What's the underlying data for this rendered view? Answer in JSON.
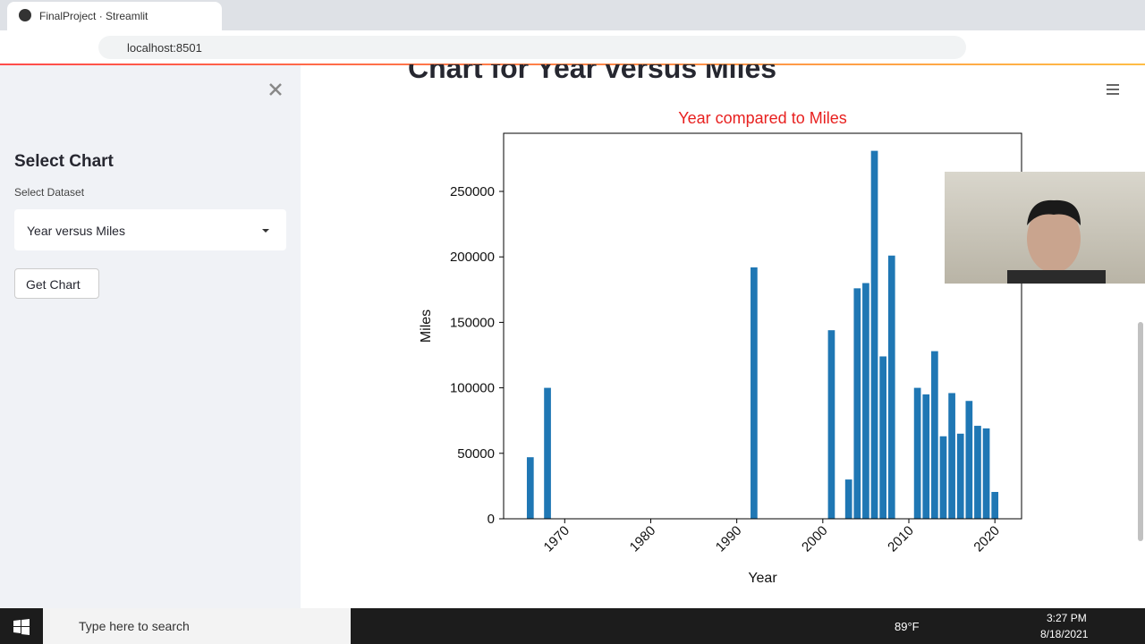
{
  "browser": {
    "tab_title": "FinalProject · Streamlit",
    "url": "localhost:8501"
  },
  "header": {
    "title": "Chart for Year versus Miles"
  },
  "sidebar": {
    "title": "Select Chart",
    "select_label": "Select Dataset",
    "select_value": "Year versus Miles",
    "button": "Get Chart"
  },
  "chart_data": {
    "type": "bar",
    "title": "Year compared to Miles",
    "title_color": "#e8201f",
    "x_label": "Year",
    "y_label": "Miles",
    "x": [
      1966,
      1968,
      1992,
      2001,
      2003,
      2004,
      2005,
      2006,
      2007,
      2008,
      2011,
      2012,
      2013,
      2014,
      2015,
      2016,
      2017,
      2018,
      2019,
      2020
    ],
    "series": [
      {
        "name": "Miles",
        "color": "#1f77b4",
        "values": [
          47000,
          100000,
          192000,
          144000,
          30000,
          176000,
          180000,
          281000,
          124000,
          201000,
          100000,
          95000,
          128000,
          63000,
          96000,
          65000,
          90000,
          71000,
          69000,
          20500
        ]
      }
    ],
    "xlim": [
      1962.9,
      2023.1
    ],
    "ylim": [
      0,
      294400
    ],
    "xticks": [
      1970,
      1980,
      1990,
      2000,
      2010,
      2020
    ],
    "yticks": [
      0,
      50000,
      100000,
      150000,
      200000,
      250000
    ],
    "grid": false
  },
  "taskbar": {
    "search": "Type here to search",
    "weather": "89°F",
    "time": "3:27 PM",
    "date": "8/18/2021"
  }
}
